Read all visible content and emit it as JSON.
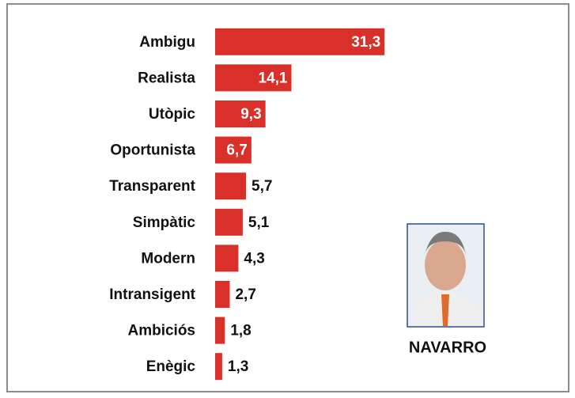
{
  "chart_data": {
    "type": "bar",
    "orientation": "horizontal",
    "categories": [
      "Ambigu",
      "Realista",
      "Utòpic",
      "Oportunista",
      "Transparent",
      "Simpàtic",
      "Modern",
      "Intransigent",
      "Ambiciós",
      "Enègic"
    ],
    "values": [
      31.3,
      14.1,
      9.3,
      6.7,
      5.7,
      5.1,
      4.3,
      2.7,
      1.8,
      1.3
    ],
    "value_labels": [
      "31,3",
      "14,1",
      "9,3",
      "6,7",
      "5,7",
      "5,1",
      "4,3",
      "2,7",
      "1,8",
      "1,3"
    ],
    "color": "#d9302a",
    "xlim": [
      0,
      32
    ],
    "annotation": "NAVARRO"
  }
}
